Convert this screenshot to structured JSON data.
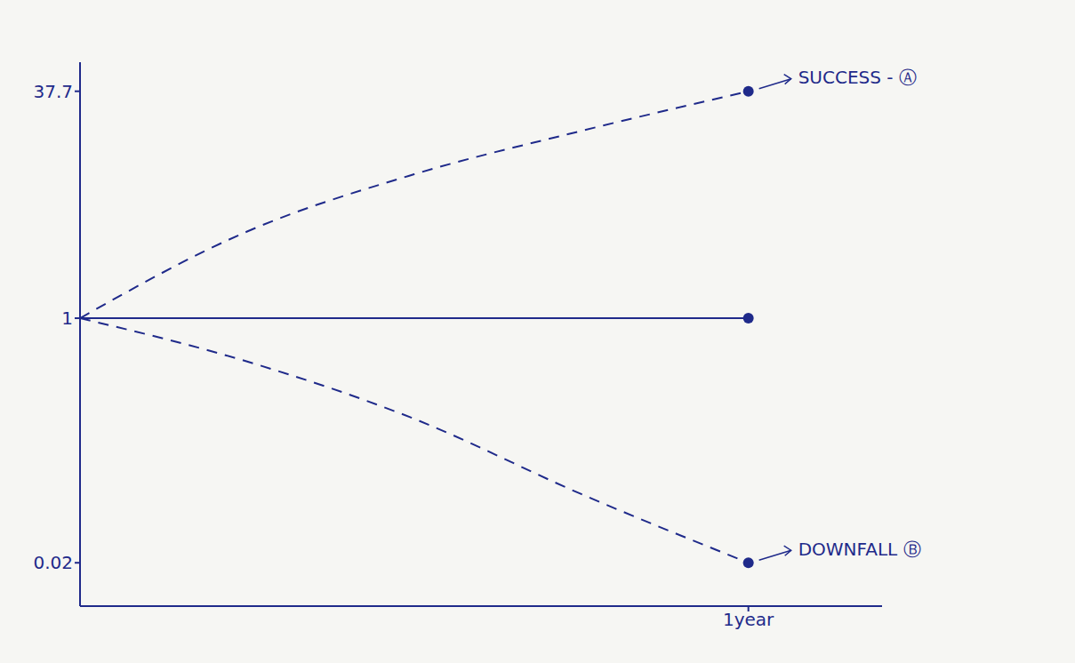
{
  "chart_data": {
    "type": "line",
    "x": [
      0,
      0.25,
      0.5,
      0.75,
      1
    ],
    "xlim": [
      0,
      1.2
    ],
    "xticks": [
      {
        "value": 1,
        "label": "1year"
      }
    ],
    "ylim": [
      0.01,
      60
    ],
    "yticks": [
      0.02,
      1,
      37.7
    ],
    "log": "y",
    "grid": false,
    "series": [
      {
        "label": "SUCCESS - Ⓐ",
        "color": "#1f2a8a",
        "line_style": "dashed",
        "values": [
          1,
          4,
          10,
          20,
          37.7
        ]
      },
      {
        "color": "#1f2a8a",
        "line_style": "solid",
        "values": [
          1,
          1,
          1,
          1,
          1
        ]
      },
      {
        "label": "DOWNFALL Ⓑ",
        "color": "#1f2a8a",
        "line_style": "dashed",
        "values": [
          1,
          0.5,
          0.2,
          0.06,
          0.02
        ]
      }
    ]
  }
}
